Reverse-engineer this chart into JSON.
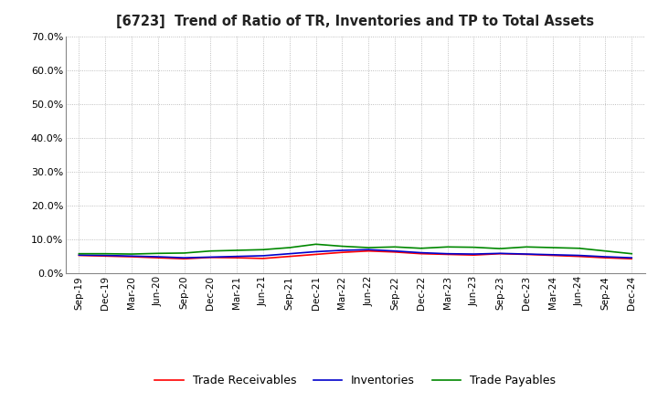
{
  "title": "[6723]  Trend of Ratio of TR, Inventories and TP to Total Assets",
  "x_labels": [
    "Sep-19",
    "Dec-19",
    "Mar-20",
    "Jun-20",
    "Sep-20",
    "Dec-20",
    "Mar-21",
    "Jun-21",
    "Sep-21",
    "Dec-21",
    "Mar-22",
    "Jun-22",
    "Sep-22",
    "Dec-22",
    "Mar-23",
    "Jun-23",
    "Sep-23",
    "Dec-23",
    "Mar-24",
    "Jun-24",
    "Sep-24",
    "Dec-24"
  ],
  "trade_receivables": [
    0.053,
    0.051,
    0.049,
    0.046,
    0.043,
    0.047,
    0.046,
    0.044,
    0.05,
    0.056,
    0.062,
    0.066,
    0.063,
    0.058,
    0.056,
    0.054,
    0.058,
    0.056,
    0.053,
    0.05,
    0.046,
    0.043
  ],
  "inventories": [
    0.054,
    0.053,
    0.051,
    0.049,
    0.046,
    0.048,
    0.05,
    0.052,
    0.058,
    0.064,
    0.068,
    0.07,
    0.066,
    0.061,
    0.058,
    0.057,
    0.059,
    0.057,
    0.055,
    0.053,
    0.049,
    0.046
  ],
  "trade_payables": [
    0.058,
    0.058,
    0.057,
    0.059,
    0.06,
    0.066,
    0.068,
    0.07,
    0.076,
    0.086,
    0.08,
    0.076,
    0.078,
    0.074,
    0.078,
    0.077,
    0.073,
    0.078,
    0.076,
    0.074,
    0.066,
    0.058
  ],
  "ylim": [
    0.0,
    0.7
  ],
  "yticks": [
    0.0,
    0.1,
    0.2,
    0.3,
    0.4,
    0.5,
    0.6,
    0.7
  ],
  "line_colors": {
    "trade_receivables": "#ff0000",
    "inventories": "#0000cc",
    "trade_payables": "#008800"
  },
  "legend_labels": [
    "Trade Receivables",
    "Inventories",
    "Trade Payables"
  ],
  "background_color": "#ffffff",
  "grid_color": "#999999"
}
